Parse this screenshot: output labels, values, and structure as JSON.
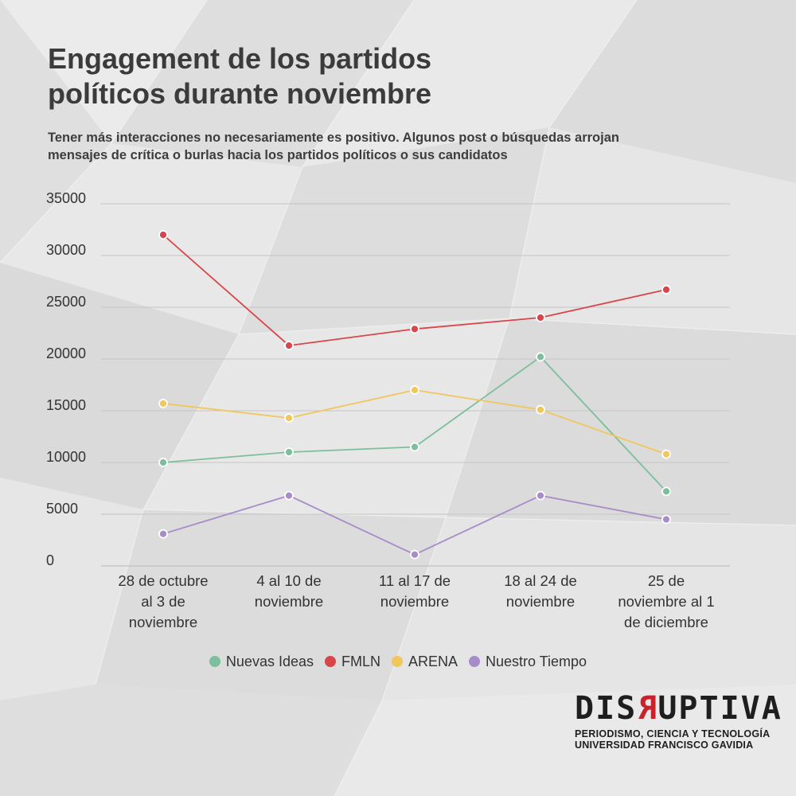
{
  "header": {
    "title_lines": [
      "Engagement de los partidos",
      "políticos durante noviembre"
    ],
    "subtitle_lines": [
      "Tener más interacciones no necesariamente es positivo. Algunos post o búsquedas arrojan",
      "mensajes de crítica o burlas hacia los partidos políticos o sus candidatos"
    ]
  },
  "chart_data": {
    "type": "line",
    "categories": [
      [
        "28 de octubre",
        "al 3 de",
        "noviembre"
      ],
      [
        "4 al 10 de",
        "noviembre"
      ],
      [
        "11 al 17 de",
        "noviembre"
      ],
      [
        "18 al 24 de",
        "noviembre"
      ],
      [
        "25 de",
        "noviembre al 1",
        "de diciembre"
      ]
    ],
    "y_ticks": [
      "0",
      "5000",
      "10000",
      "15000",
      "20000",
      "25000",
      "30000",
      "35000"
    ],
    "ylim": [
      0,
      35000
    ],
    "grid": true,
    "legend_placement": "bottom",
    "series": [
      {
        "name": "Nuevas Ideas",
        "color": "#7dbe9c",
        "values": [
          10000,
          11000,
          11500,
          20200,
          7200
        ]
      },
      {
        "name": "FMLN",
        "color": "#d6464a",
        "values": [
          32000,
          21300,
          22900,
          24000,
          26700
        ]
      },
      {
        "name": "ARENA",
        "color": "#f0c75b",
        "values": [
          15700,
          14300,
          17000,
          15100,
          10800
        ]
      },
      {
        "name": "Nuestro Tiempo",
        "color": "#a88bc9",
        "values": [
          3100,
          6800,
          1100,
          6800,
          4500
        ]
      }
    ]
  },
  "logo": {
    "word_before": "DIS",
    "word_flipped": "R",
    "word_after": "UPTIVA",
    "line1": "PERIODISMO, CIENCIA Y TECNOLOGÍA",
    "line2": "UNIVERSIDAD FRANCISCO GAVIDIA"
  }
}
